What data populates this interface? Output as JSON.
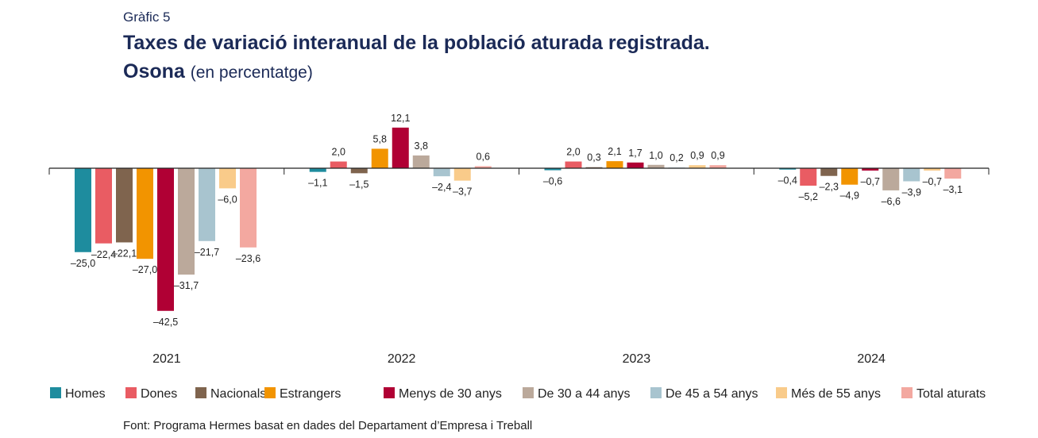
{
  "header": {
    "label": "Gràfic 5",
    "title_line1": "Taxes de variació interanual de la població aturada registrada.",
    "title_line2_bold": "Osona",
    "title_line2_sub": "(en percentatge)"
  },
  "source": "Font: Programa Hermes basat en dades del Departament d’Empresa i Treball",
  "chart_data": {
    "type": "bar",
    "title": "Taxes de variació interanual de la població aturada registrada. Osona (en percentatge)",
    "xlabel": "",
    "ylabel": "",
    "ylim": [
      -45,
      13
    ],
    "grid": false,
    "legend_position": "bottom",
    "categories": [
      "2021",
      "2022",
      "2023",
      "2024"
    ],
    "series": [
      {
        "name": "Homes",
        "color": "#1e8c9e",
        "values": [
          -25.0,
          -1.1,
          -0.6,
          -0.4
        ],
        "labels": [
          "–25,0",
          "–1,1",
          "–0,6",
          "–0,4"
        ]
      },
      {
        "name": "Dones",
        "color": "#e95c63",
        "values": [
          -22.4,
          2.0,
          2.0,
          -5.2
        ],
        "labels": [
          "–22,4",
          "2,0",
          "2,0",
          "–5,2"
        ]
      },
      {
        "name": "Nacionals",
        "color": "#7f644e",
        "values": [
          -22.1,
          -1.5,
          0.3,
          -2.3
        ],
        "labels": [
          "–22,1",
          "–1,5",
          "0,3",
          "–2,3"
        ]
      },
      {
        "name": "Estrangers",
        "color": "#f29400",
        "values": [
          -27.0,
          5.8,
          2.1,
          -4.9
        ],
        "labels": [
          "–27,0",
          "5,8",
          "2,1",
          "–4,9"
        ]
      },
      {
        "name": "Menys de 30 anys",
        "color": "#b00034",
        "values": [
          -42.5,
          12.1,
          1.7,
          -0.7
        ],
        "labels": [
          "–42,5",
          "12,1",
          "1,7",
          "–0,7"
        ]
      },
      {
        "name": "De 30 a 44 anys",
        "color": "#bba99b",
        "values": [
          -31.7,
          3.8,
          1.0,
          -6.6
        ],
        "labels": [
          "–31,7",
          "3,8",
          "1,0",
          "–6,6"
        ]
      },
      {
        "name": "De 45 a 54 anys",
        "color": "#a8c4cf",
        "values": [
          -21.7,
          -2.4,
          0.2,
          -3.9
        ],
        "labels": [
          "–21,7",
          "–2,4",
          "0,2",
          "–3,9"
        ]
      },
      {
        "name": "Més de 55 anys",
        "color": "#f9cb8a",
        "values": [
          -6.0,
          -3.7,
          0.9,
          -0.7
        ],
        "labels": [
          "–6,0",
          "–3,7",
          "0,9",
          "–0,7"
        ]
      },
      {
        "name": "Total aturats",
        "color": "#f3a8a0",
        "values": [
          -23.6,
          0.6,
          0.9,
          -3.1
        ],
        "labels": [
          "–23,6",
          "0,6",
          "0,9",
          "–3,1"
        ]
      }
    ]
  }
}
